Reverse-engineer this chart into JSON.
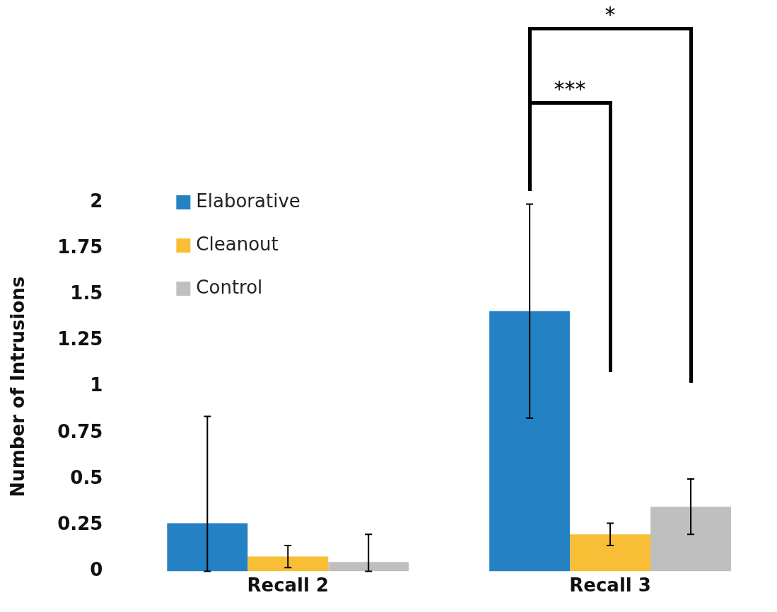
{
  "chart_data": {
    "type": "bar",
    "ylabel": "Number of Intrusions",
    "categories": [
      "Recall 2",
      "Recall 3"
    ],
    "series": [
      {
        "name": "Elaborative",
        "color": "#2481c3",
        "values": [
          0.26,
          1.41
        ],
        "errors": [
          [
            0,
            0.84
          ],
          [
            0.83,
            1.99
          ]
        ]
      },
      {
        "name": "Cleanout",
        "color": "#f8bf36",
        "values": [
          0.08,
          0.2
        ],
        "errors": [
          [
            0.02,
            0.14
          ],
          [
            0.14,
            0.26
          ]
        ]
      },
      {
        "name": "Control",
        "color": "#bfbfbf",
        "values": [
          0.05,
          0.35
        ],
        "errors": [
          [
            0,
            0.2
          ],
          [
            0.2,
            0.5
          ]
        ]
      }
    ],
    "ylim": [
      0,
      2
    ],
    "yticks": [
      0,
      0.25,
      0.5,
      0.75,
      1,
      1.25,
      1.5,
      1.75,
      2
    ],
    "grid": false,
    "legend": "top left",
    "annotations": [
      "***",
      "*"
    ]
  }
}
